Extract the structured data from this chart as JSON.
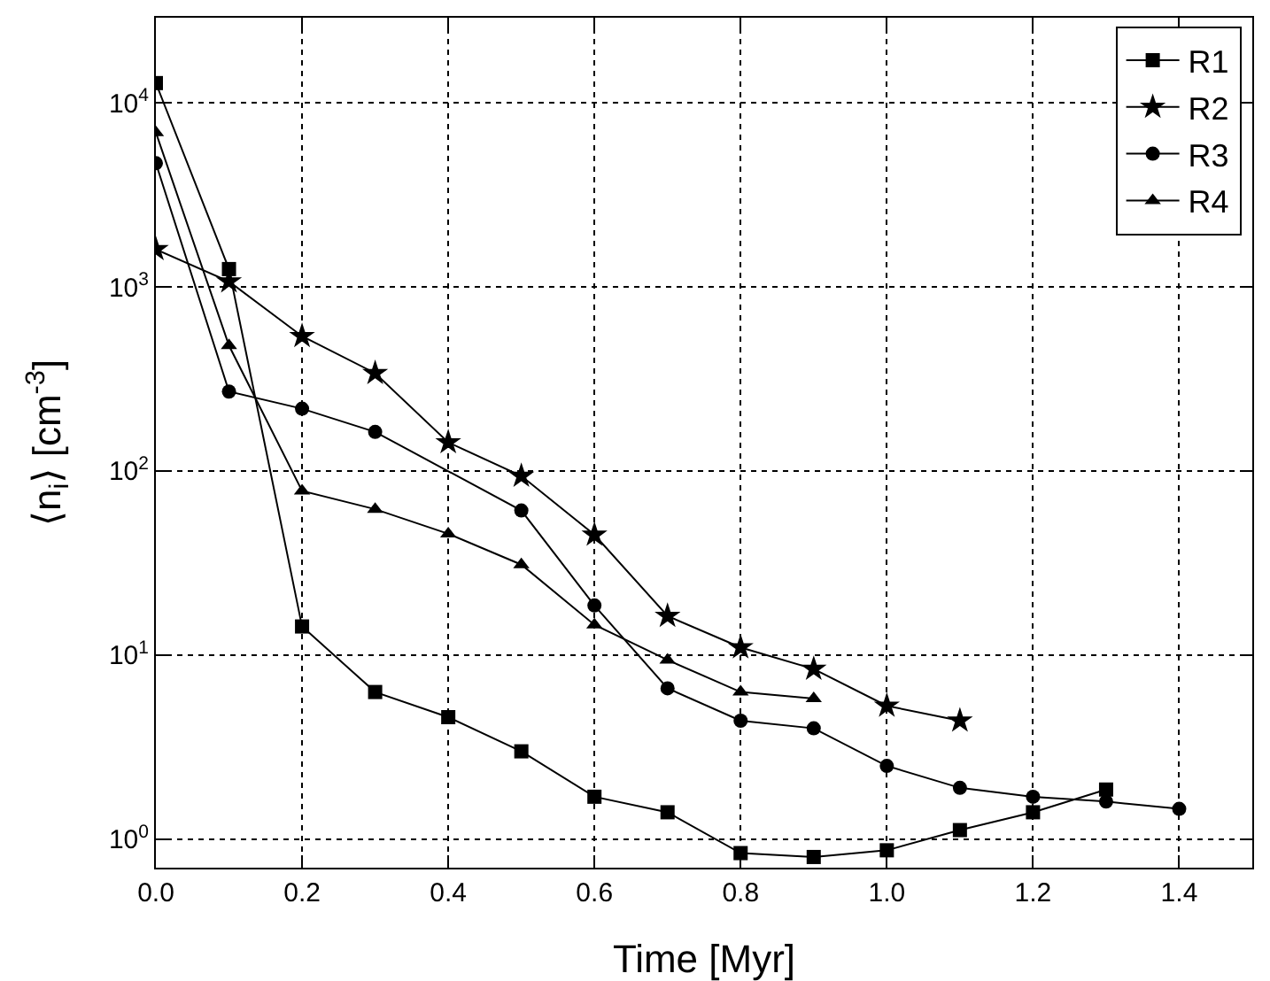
{
  "chart_data": {
    "type": "line",
    "xlabel": "Time [Myr]",
    "ylabel": "⟨n$_{i}$⟩ [cm$^{-3}$]",
    "log": "y",
    "grid": true,
    "legend": "top right",
    "line_style": "solid",
    "xlim": [
      0,
      1.5
    ],
    "xticks": [
      {
        "value": 0,
        "label": "0.0"
      },
      {
        "value": 0.2,
        "label": "0.2"
      },
      {
        "value": 0.4,
        "label": "0.4"
      },
      {
        "value": 0.6,
        "label": "0.6"
      },
      {
        "value": 0.8,
        "label": "0.8"
      },
      {
        "value": 1,
        "label": "1.0"
      },
      {
        "value": 1.2,
        "label": "1.2"
      },
      {
        "value": 1.4,
        "label": "1.4"
      }
    ],
    "ylim": [
      0.7,
      29000
    ],
    "yticks": [
      {
        "value": 1,
        "label": "10$^{0}$"
      },
      {
        "value": 10,
        "label": "10$^{1}$"
      },
      {
        "value": 100,
        "label": "10$^{2}$"
      },
      {
        "value": 1000,
        "label": "10$^{3}$"
      },
      {
        "value": 10000,
        "label": "10$^{4}$"
      }
    ],
    "series": [
      {
        "name": "R1",
        "color": "#000000",
        "marker": "square",
        "x": [
          0,
          0.1,
          0.2,
          0.3,
          0.4,
          0.5,
          0.6,
          0.7,
          0.8,
          0.9,
          1.0,
          1.1,
          1.2,
          1.3
        ],
        "values": [
          12800,
          1250,
          14.3,
          6.3,
          4.6,
          3.0,
          1.7,
          1.4,
          0.84,
          0.8,
          0.87,
          1.12,
          1.4,
          1.86
        ]
      },
      {
        "name": "R2",
        "color": "#000000",
        "marker": "star",
        "x": [
          0,
          0.1,
          0.2,
          0.3,
          0.4,
          0.5,
          0.6,
          0.7,
          0.8,
          0.9,
          1.0,
          1.1
        ],
        "values": [
          1600,
          1070,
          540,
          340,
          143,
          94,
          45,
          16.3,
          11,
          8.4,
          5.3,
          4.4
        ]
      },
      {
        "name": "R3",
        "color": "#000000",
        "marker": "circle",
        "x": [
          0,
          0.1,
          0.2,
          0.3,
          0.5,
          0.6,
          0.7,
          0.8,
          0.9,
          1.0,
          1.1,
          1.2,
          1.3,
          1.4
        ],
        "values": [
          4700,
          270,
          218,
          163,
          61,
          18.6,
          6.6,
          4.4,
          4.0,
          2.5,
          1.9,
          1.7,
          1.6,
          1.46
        ]
      },
      {
        "name": "R4",
        "color": "#000000",
        "marker": "triangle",
        "x": [
          0,
          0.1,
          0.2,
          0.3,
          0.4,
          0.5,
          0.6,
          0.7,
          0.8,
          0.9
        ],
        "values": [
          6900,
          480,
          78,
          62,
          45.6,
          31,
          14.6,
          9.4,
          6.3,
          5.8
        ]
      }
    ]
  }
}
